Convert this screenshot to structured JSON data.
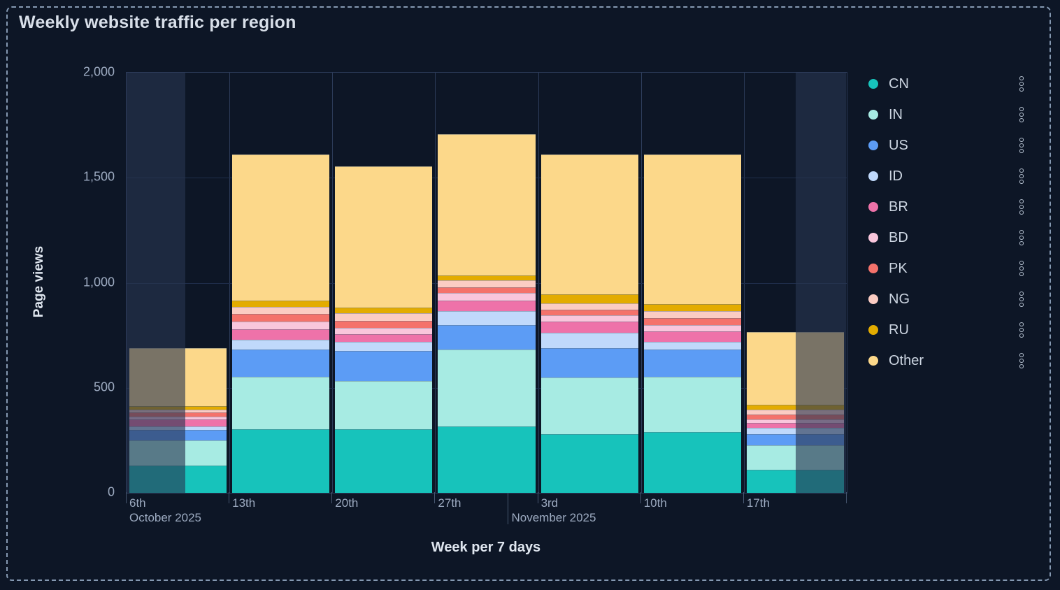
{
  "panel": {
    "title": "Weekly website traffic per region"
  },
  "axes": {
    "y_title": "Page views",
    "x_title": "Week per 7 days",
    "y_ticks": [
      {
        "label": "0",
        "value": 0
      },
      {
        "label": "500",
        "value": 500
      },
      {
        "label": "1,000",
        "value": 1000
      },
      {
        "label": "1,500",
        "value": 1500
      },
      {
        "label": "2,000",
        "value": 2000
      }
    ],
    "x_ticks": [
      "6th",
      "13th",
      "20th",
      "27th",
      "3rd",
      "10th",
      "17th"
    ],
    "x_month_labels": [
      {
        "text": "October 2025",
        "anchor_category": 0,
        "offset_fraction": 0
      },
      {
        "text": "November 2025",
        "anchor_category": 3,
        "offset_fraction": 0.714
      }
    ]
  },
  "icons": {
    "legend_menu": "kebab-vertical-dots-icon"
  },
  "chart_data": {
    "type": "bar",
    "stacked": true,
    "title": "Weekly website traffic per region",
    "xlabel": "Week per 7 days",
    "ylabel": "Page views",
    "ylim": [
      0,
      2000
    ],
    "grid": true,
    "legend_position": "right",
    "categories": [
      "6th",
      "13th",
      "20th",
      "27th",
      "3rd",
      "10th",
      "17th"
    ],
    "category_months": [
      "October 2025",
      "October 2025",
      "October 2025",
      "October 2025",
      "November 2025",
      "November 2025",
      "November 2025"
    ],
    "series": [
      {
        "name": "CN",
        "color": "#17c3bb",
        "values": [
          130,
          302,
          304,
          315,
          280,
          291,
          111
        ]
      },
      {
        "name": "IN",
        "color": "#a7ebe3",
        "values": [
          118,
          250,
          228,
          366,
          269,
          263,
          117
        ]
      },
      {
        "name": "US",
        "color": "#5c9cf5",
        "values": [
          50,
          131,
          144,
          117,
          140,
          129,
          52
        ]
      },
      {
        "name": "ID",
        "color": "#c0d9fb",
        "values": [
          17,
          47,
          42,
          67,
          72,
          36,
          28
        ]
      },
      {
        "name": "BR",
        "color": "#ee72a9",
        "values": [
          33,
          50,
          37,
          50,
          55,
          50,
          26
        ]
      },
      {
        "name": "BD",
        "color": "#f9c6dc",
        "values": [
          16,
          37,
          30,
          36,
          29,
          31,
          16
        ]
      },
      {
        "name": "PK",
        "color": "#f4726b",
        "values": [
          18,
          36,
          33,
          28,
          27,
          33,
          23
        ]
      },
      {
        "name": "NG",
        "color": "#fbccc3",
        "values": [
          15,
          33,
          38,
          33,
          31,
          32,
          22
        ]
      },
      {
        "name": "RU",
        "color": "#e3ac00",
        "values": [
          17,
          28,
          25,
          24,
          41,
          33,
          25
        ]
      },
      {
        "name": "Other",
        "color": "#fcd88a",
        "values": [
          276,
          696,
          672,
          671,
          667,
          712,
          345
        ]
      }
    ],
    "totals": [
      690,
      1610,
      1553,
      1707,
      1611,
      1610,
      765
    ],
    "dimmed_out_of_range": {
      "first_bar_dimmed_left_fraction": 0.571,
      "last_bar_dimmed_right_fraction": 0.49
    }
  },
  "colors": {
    "background": "#0d1626",
    "panel_dashed_border": "#8599b2",
    "grid_vertical": "#2c3b59",
    "grid_horizontal": "#1f2d4b",
    "tick_mark": "#46566f",
    "tick_text": "#9dabc1",
    "title_text": "#d8dfe9",
    "axis_title_text": "#dfe6ef",
    "legend_text": "#cdd6e2",
    "dim_overlay": "rgba(41,53,80,0.62)"
  }
}
